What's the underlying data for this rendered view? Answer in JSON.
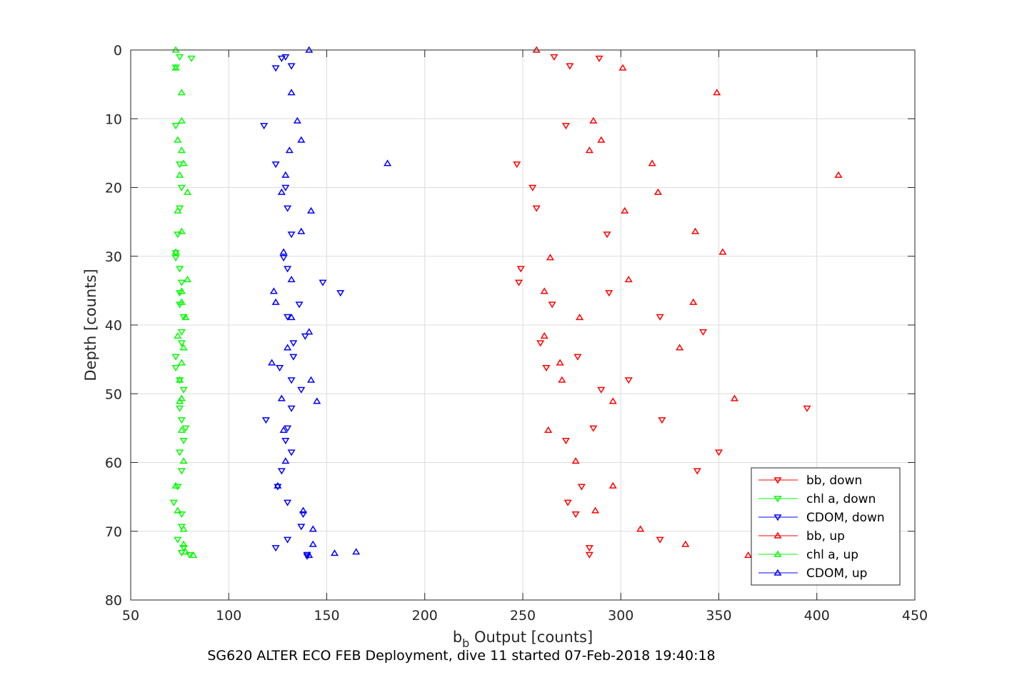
{
  "chart_data": {
    "type": "scatter",
    "xlabel_main": "b",
    "xlabel_sub": "b",
    "xlabel_rest": " Output [counts]",
    "ylabel": "Depth [counts]",
    "caption": "SG620 ALTER ECO FEB Deployment, dive 11 started 07-Feb-2018 19:40:18",
    "xlim": [
      50,
      450
    ],
    "ylim": [
      0,
      80
    ],
    "y_reversed": true,
    "grid": true,
    "legend_position": "bottom-right",
    "x_ticks": [
      50,
      100,
      150,
      200,
      250,
      300,
      350,
      400,
      450
    ],
    "y_ticks": [
      0,
      10,
      20,
      30,
      40,
      50,
      60,
      70,
      80
    ],
    "series": [
      {
        "name": "bb, down",
        "color": "#ff0000",
        "marker": "triangle-down",
        "points": [
          [
            289,
            1.2
          ],
          [
            266,
            1.0
          ],
          [
            274,
            2.3
          ],
          [
            272,
            11.0
          ],
          [
            247,
            16.6
          ],
          [
            255,
            20.0
          ],
          [
            257,
            23.0
          ],
          [
            293,
            26.8
          ],
          [
            249,
            31.8
          ],
          [
            248,
            33.8
          ],
          [
            294,
            35.3
          ],
          [
            265,
            37.0
          ],
          [
            320,
            38.8
          ],
          [
            342,
            41.0
          ],
          [
            259,
            42.6
          ],
          [
            278,
            44.6
          ],
          [
            262,
            46.2
          ],
          [
            304,
            48.0
          ],
          [
            290,
            49.4
          ],
          [
            395,
            52.1
          ],
          [
            321,
            53.8
          ],
          [
            286,
            55.0
          ],
          [
            272,
            56.8
          ],
          [
            350,
            58.5
          ],
          [
            339,
            61.2
          ],
          [
            280,
            63.5
          ],
          [
            273,
            65.8
          ],
          [
            277,
            67.5
          ],
          [
            320,
            71.2
          ],
          [
            284,
            72.4
          ],
          [
            284,
            73.4
          ]
        ]
      },
      {
        "name": "chl a, down",
        "color": "#00ff00",
        "marker": "triangle-down",
        "points": [
          [
            75,
            1.0
          ],
          [
            81,
            1.2
          ],
          [
            73,
            2.5
          ],
          [
            73,
            11.0
          ],
          [
            75,
            16.6
          ],
          [
            76,
            20.0
          ],
          [
            75,
            23.0
          ],
          [
            74,
            26.8
          ],
          [
            73,
            29.5
          ],
          [
            73,
            30.2
          ],
          [
            75,
            31.8
          ],
          [
            76,
            33.8
          ],
          [
            75,
            35.3
          ],
          [
            75,
            37.0
          ],
          [
            77,
            38.8
          ],
          [
            76,
            41.0
          ],
          [
            76,
            42.6
          ],
          [
            73,
            44.6
          ],
          [
            73,
            46.2
          ],
          [
            75,
            48.0
          ],
          [
            77,
            49.4
          ],
          [
            75,
            52.1
          ],
          [
            76,
            53.8
          ],
          [
            78,
            55.0
          ],
          [
            77,
            56.8
          ],
          [
            75,
            58.5
          ],
          [
            76,
            61.2
          ],
          [
            74,
            63.5
          ],
          [
            72,
            65.8
          ],
          [
            76,
            67.5
          ],
          [
            76,
            69.3
          ],
          [
            74,
            71.2
          ],
          [
            77,
            72.4
          ],
          [
            80,
            73.4
          ],
          [
            76,
            73.1
          ]
        ]
      },
      {
        "name": "CDOM, down",
        "color": "#0000ff",
        "marker": "triangle-down",
        "points": [
          [
            127,
            1.2
          ],
          [
            129,
            1.0
          ],
          [
            132,
            2.3
          ],
          [
            124,
            2.6
          ],
          [
            118,
            11.0
          ],
          [
            124,
            16.6
          ],
          [
            129,
            20.0
          ],
          [
            130,
            23.0
          ],
          [
            132,
            26.8
          ],
          [
            128,
            30.2
          ],
          [
            130,
            31.8
          ],
          [
            148,
            33.8
          ],
          [
            157,
            35.3
          ],
          [
            136,
            37.0
          ],
          [
            130,
            38.8
          ],
          [
            139,
            41.6
          ],
          [
            133,
            42.6
          ],
          [
            133,
            44.6
          ],
          [
            126,
            46.2
          ],
          [
            132,
            48.0
          ],
          [
            137,
            49.4
          ],
          [
            132,
            52.1
          ],
          [
            119,
            53.8
          ],
          [
            130,
            55.0
          ],
          [
            129,
            56.8
          ],
          [
            132,
            58.5
          ],
          [
            127,
            61.2
          ],
          [
            125,
            63.5
          ],
          [
            130,
            65.8
          ],
          [
            138,
            67.5
          ],
          [
            137,
            69.3
          ],
          [
            130,
            71.2
          ],
          [
            124,
            72.4
          ],
          [
            140,
            73.4
          ],
          [
            140,
            73.6
          ]
        ]
      },
      {
        "name": "bb, up",
        "color": "#ff0000",
        "marker": "triangle-up",
        "points": [
          [
            257,
            0.0
          ],
          [
            301,
            2.6
          ],
          [
            349,
            6.2
          ],
          [
            286,
            10.3
          ],
          [
            290,
            13.1
          ],
          [
            284,
            14.6
          ],
          [
            316,
            16.5
          ],
          [
            411,
            18.2
          ],
          [
            319,
            20.7
          ],
          [
            302,
            23.4
          ],
          [
            338,
            26.4
          ],
          [
            352,
            29.4
          ],
          [
            264,
            30.2
          ],
          [
            304,
            33.4
          ],
          [
            261,
            35.1
          ],
          [
            337,
            36.7
          ],
          [
            279,
            38.9
          ],
          [
            261,
            41.6
          ],
          [
            330,
            43.3
          ],
          [
            269,
            45.5
          ],
          [
            270,
            48.0
          ],
          [
            358,
            50.7
          ],
          [
            296,
            51.1
          ],
          [
            263,
            55.3
          ],
          [
            277,
            59.8
          ],
          [
            296,
            63.4
          ],
          [
            287,
            67.0
          ],
          [
            310,
            69.7
          ],
          [
            333,
            71.9
          ],
          [
            365,
            73.5
          ]
        ]
      },
      {
        "name": "chl a, up",
        "color": "#00ff00",
        "marker": "triangle-up",
        "points": [
          [
            73,
            0.0
          ],
          [
            73,
            2.6
          ],
          [
            76,
            6.2
          ],
          [
            76,
            10.3
          ],
          [
            74,
            13.1
          ],
          [
            76,
            14.6
          ],
          [
            77,
            16.5
          ],
          [
            75,
            18.2
          ],
          [
            79,
            20.7
          ],
          [
            74,
            23.4
          ],
          [
            76,
            26.4
          ],
          [
            73,
            29.4
          ],
          [
            79,
            33.4
          ],
          [
            76,
            35.1
          ],
          [
            76,
            36.7
          ],
          [
            78,
            38.9
          ],
          [
            74,
            41.6
          ],
          [
            77,
            43.3
          ],
          [
            76,
            45.5
          ],
          [
            75,
            48.0
          ],
          [
            76,
            50.7
          ],
          [
            75,
            51.1
          ],
          [
            76,
            55.3
          ],
          [
            77,
            59.8
          ],
          [
            73,
            63.4
          ],
          [
            74,
            67.0
          ],
          [
            77,
            69.7
          ],
          [
            77,
            71.9
          ],
          [
            82,
            73.5
          ],
          [
            78,
            73.0
          ]
        ]
      },
      {
        "name": "CDOM, up",
        "color": "#0000ff",
        "marker": "triangle-up",
        "points": [
          [
            141,
            0.0
          ],
          [
            132,
            6.2
          ],
          [
            135,
            10.3
          ],
          [
            137,
            13.1
          ],
          [
            131,
            14.6
          ],
          [
            181,
            16.5
          ],
          [
            129,
            18.2
          ],
          [
            127,
            20.7
          ],
          [
            142,
            23.4
          ],
          [
            137,
            26.4
          ],
          [
            128,
            29.4
          ],
          [
            132,
            33.4
          ],
          [
            123,
            35.1
          ],
          [
            124,
            36.7
          ],
          [
            132,
            38.9
          ],
          [
            141,
            41.0
          ],
          [
            130,
            43.3
          ],
          [
            122,
            45.5
          ],
          [
            142,
            48.0
          ],
          [
            127,
            50.7
          ],
          [
            145,
            51.1
          ],
          [
            128,
            55.3
          ],
          [
            129,
            59.8
          ],
          [
            125,
            63.4
          ],
          [
            138,
            67.0
          ],
          [
            143,
            69.7
          ],
          [
            143,
            71.9
          ],
          [
            154,
            73.2
          ],
          [
            165,
            73.0
          ],
          [
            141,
            73.5
          ]
        ]
      }
    ]
  }
}
